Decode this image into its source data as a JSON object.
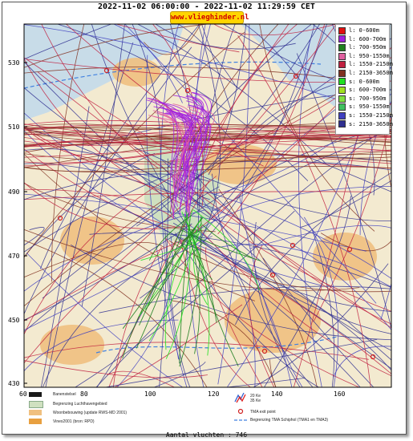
{
  "title": "2022-11-02 06:00:00 - 2022-11-02 11:29:59 CET",
  "site": "www.vlieghinder.nl",
  "y_ticks": [
    "530",
    "510",
    "490",
    "470",
    "450",
    "430"
  ],
  "x_ticks": [
    "60",
    "80",
    "100",
    "120",
    "140",
    "160"
  ],
  "legend": [
    {
      "label": "l: 0-600m",
      "color": "#e01010"
    },
    {
      "label": "l: 600-700m",
      "color": "#a020e0"
    },
    {
      "label": "l: 700-950m",
      "color": "#208020"
    },
    {
      "label": "l: 950-1550m",
      "color": "#e060a0"
    },
    {
      "label": "l: 1550-2150m",
      "color": "#c02040"
    },
    {
      "label": "l: 2150-3650m",
      "color": "#803020"
    },
    {
      "label": "s: 0-600m",
      "color": "#20e020"
    },
    {
      "label": "s: 600-700m",
      "color": "#a0e020"
    },
    {
      "label": "s: 700-950m",
      "color": "#80e040"
    },
    {
      "label": "s: 950-1550m",
      "color": "#40c060"
    },
    {
      "label": "s: 1550-2150m",
      "color": "#4040c0"
    },
    {
      "label": "s: 2150-3650m",
      "color": "#303090"
    }
  ],
  "bottom_legend": {
    "runway": "Banenstelsel",
    "airport_area": "Begrenzing Luchthavengebied",
    "housing": "Woonbebouwing (update RWS-MD 2001)",
    "vinex": "Vinex2001 (bron: RPD)",
    "kv": "20 Ke\n35 Ke",
    "kv_line1": "20 Ke",
    "kv_line2": "35 Ke",
    "tma_exit": "TMA exit point",
    "tma_border": "Begrenzing TMA Schiphol  (TMA1 en TMA3)"
  },
  "count": "Aantal vluchten : 746",
  "colors": {
    "land": "#f3ead0",
    "water": "#c8dce8",
    "airport": "#cfe0c0",
    "housing": "#f0c080"
  }
}
